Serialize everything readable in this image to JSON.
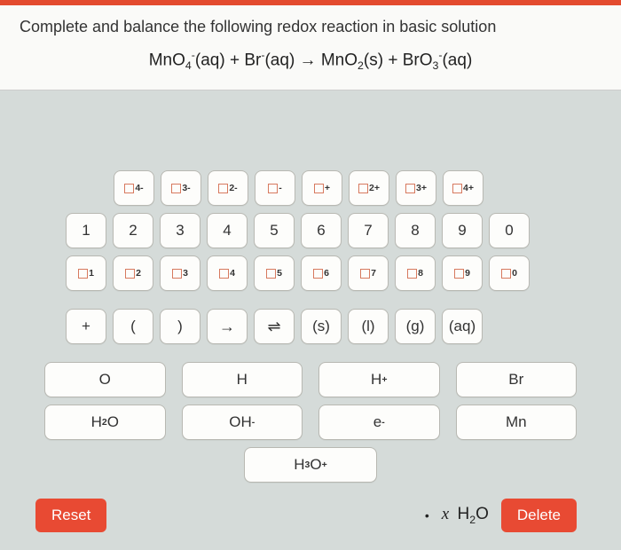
{
  "colors": {
    "accent": "#e84a33",
    "topbar": "#e34b2f",
    "page_bg": "#d5dbd9",
    "panel_bg": "#fafaf8",
    "key_bg": "#fdfdfb",
    "key_border": "#b8b8b2",
    "placeholder_border": "#d77a5f"
  },
  "question": {
    "prompt": "Complete and balance the following redox reaction in basic solution",
    "equation_html": "MnO<span class='sub'>4</span><span class='sup'>-</span>(aq) + Br<span class='sup'>-</span>(aq) → MnO<span class='sub'>2</span>(s) + BrO<span class='sub'>3</span><span class='sup'>-</span>(aq)"
  },
  "keypad": {
    "charge_row": [
      "4-",
      "3-",
      "2-",
      "-",
      "+",
      "2+",
      "3+",
      "4+"
    ],
    "digits": [
      "1",
      "2",
      "3",
      "4",
      "5",
      "6",
      "7",
      "8",
      "9",
      "0"
    ],
    "subscripts": [
      "1",
      "2",
      "3",
      "4",
      "5",
      "6",
      "7",
      "8",
      "9",
      "0"
    ],
    "ops_row": [
      "+",
      "(",
      ")",
      "→",
      "⇌",
      "(s)",
      "(l)",
      "(g)",
      "(aq)"
    ],
    "elements_row1": [
      "O",
      "H",
      "H⁺",
      "Br"
    ],
    "elements_row2": [
      "H₂O",
      "OH⁻",
      "e⁻",
      "Mn"
    ],
    "elements_row3": [
      "H₃O⁺"
    ]
  },
  "controls": {
    "reset": "Reset",
    "delete": "Delete",
    "current_entry_html": "<span class='ital'>x</span> H<span class='sub'>2</span>O"
  }
}
